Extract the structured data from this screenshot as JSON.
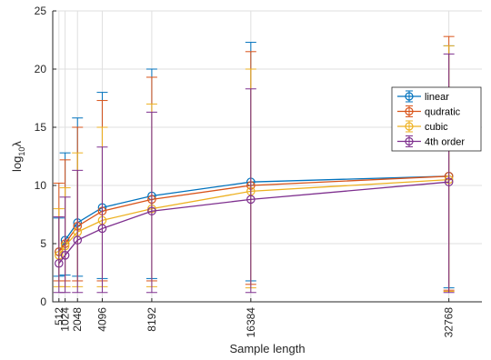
{
  "chart_data": {
    "type": "line",
    "error_bars": true,
    "title": "",
    "xlabel": "Sample length",
    "ylabel_base": "log",
    "ylabel_sub": "10",
    "ylabel_var": "λ",
    "x": [
      512,
      1024,
      2048,
      4096,
      8192,
      16384,
      32768
    ],
    "x_tick_labels": [
      "512",
      "1024",
      "2048",
      "4096",
      "8192",
      "16384",
      "32768"
    ],
    "xlim": [
      0,
      35500
    ],
    "ylim": [
      0,
      25
    ],
    "y_ticks": [
      0,
      5,
      10,
      15,
      20,
      25
    ],
    "grid": true,
    "legend_position": "right",
    "series": [
      {
        "name": "linear",
        "color": "#0072BD",
        "values": [
          4.3,
          5.3,
          6.8,
          8.1,
          9.1,
          10.3,
          10.8
        ],
        "err_lower": [
          2.2,
          2.3,
          2.2,
          2.0,
          2.0,
          1.8,
          1.2
        ],
        "err_upper": [
          7.2,
          12.8,
          15.8,
          18.0,
          20.0,
          22.3,
          22.0
        ]
      },
      {
        "name": "qudratic",
        "color": "#D95319",
        "values": [
          4.3,
          5.0,
          6.5,
          7.8,
          8.8,
          10.0,
          10.8
        ],
        "err_lower": [
          1.8,
          1.8,
          1.8,
          1.8,
          1.8,
          1.5,
          1.0
        ],
        "err_upper": [
          10.2,
          12.2,
          15.0,
          17.3,
          19.3,
          21.5,
          22.8
        ]
      },
      {
        "name": "cubic",
        "color": "#EDB120",
        "values": [
          4.0,
          4.8,
          6.0,
          7.0,
          8.0,
          9.5,
          10.5
        ],
        "err_lower": [
          1.3,
          1.3,
          1.3,
          1.3,
          1.3,
          1.2,
          0.9
        ],
        "err_upper": [
          8.0,
          9.8,
          12.8,
          15.0,
          17.0,
          20.0,
          22.0
        ]
      },
      {
        "name": "4th order",
        "color": "#7E2F8E",
        "values": [
          3.3,
          4.0,
          5.3,
          6.3,
          7.8,
          8.8,
          10.3
        ],
        "err_lower": [
          0.8,
          0.8,
          0.8,
          0.8,
          0.8,
          0.8,
          0.8
        ],
        "err_upper": [
          7.3,
          9.0,
          11.3,
          13.3,
          16.3,
          18.3,
          21.3
        ]
      }
    ]
  }
}
